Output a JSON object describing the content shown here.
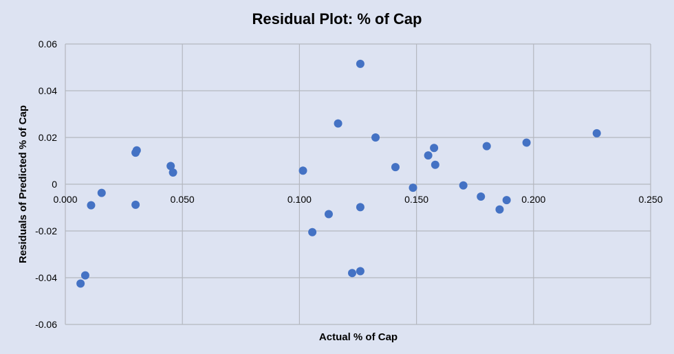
{
  "chart_data": {
    "type": "scatter",
    "title": "Residual Plot: % of Cap",
    "xlabel": "Actual % of Cap",
    "ylabel": "Residuals of Predicted % of Cap",
    "xlim": [
      0,
      0.25
    ],
    "ylim": [
      -0.06,
      0.06
    ],
    "x_ticks": [
      "0.000",
      "0.050",
      "0.100",
      "0.150",
      "0.200",
      "0.250"
    ],
    "y_ticks": [
      "0.06",
      "0.04",
      "0.02",
      "0",
      "-0.02",
      "-0.04",
      "-0.06"
    ],
    "grid": true,
    "legend": "none",
    "marker_color": "#4472c4",
    "series": [
      {
        "points": [
          {
            "x": 0.0065,
            "y": -0.0425
          },
          {
            "x": 0.0085,
            "y": -0.039
          },
          {
            "x": 0.011,
            "y": -0.009
          },
          {
            "x": 0.0155,
            "y": -0.0037
          },
          {
            "x": 0.03,
            "y": 0.0135
          },
          {
            "x": 0.0305,
            "y": 0.0145
          },
          {
            "x": 0.03,
            "y": -0.0088
          },
          {
            "x": 0.045,
            "y": 0.0078
          },
          {
            "x": 0.046,
            "y": 0.005
          },
          {
            "x": 0.1015,
            "y": 0.0058
          },
          {
            "x": 0.1055,
            "y": -0.0205
          },
          {
            "x": 0.1125,
            "y": -0.0128
          },
          {
            "x": 0.1165,
            "y": 0.026
          },
          {
            "x": 0.1225,
            "y": -0.038
          },
          {
            "x": 0.126,
            "y": -0.0372
          },
          {
            "x": 0.126,
            "y": 0.0515
          },
          {
            "x": 0.126,
            "y": -0.0098
          },
          {
            "x": 0.1325,
            "y": 0.02
          },
          {
            "x": 0.141,
            "y": 0.0073
          },
          {
            "x": 0.1485,
            "y": -0.0015
          },
          {
            "x": 0.155,
            "y": 0.0123
          },
          {
            "x": 0.1575,
            "y": 0.0155
          },
          {
            "x": 0.158,
            "y": 0.0083
          },
          {
            "x": 0.17,
            "y": -0.0005
          },
          {
            "x": 0.1775,
            "y": -0.0053
          },
          {
            "x": 0.18,
            "y": 0.0163
          },
          {
            "x": 0.1855,
            "y": -0.0108
          },
          {
            "x": 0.1885,
            "y": -0.0068
          },
          {
            "x": 0.197,
            "y": 0.0178
          },
          {
            "x": 0.227,
            "y": 0.0218
          }
        ]
      }
    ]
  }
}
